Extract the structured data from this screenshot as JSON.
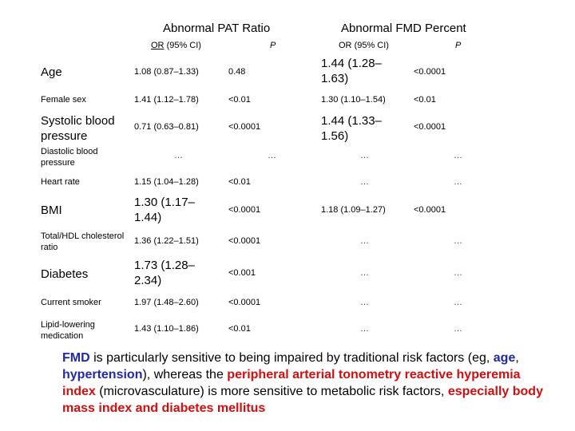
{
  "headers": {
    "pat": "Abnormal PAT Ratio",
    "fmd": "Abnormal FMD Percent",
    "or_label": "OR",
    "ci_label": "(95% CI)",
    "p_label": "P"
  },
  "rows": [
    {
      "label": "Age",
      "pat_or": "1.08 (0.87–1.33)",
      "pat_p": "0.48",
      "fmd_or": "1.44 (1.28–1.63)",
      "fmd_p": "<0.0001"
    },
    {
      "label": "Female sex",
      "pat_or": "1.41 (1.12–1.78)",
      "pat_p": "<0.01",
      "fmd_or": "1.30 (1.10–1.54)",
      "fmd_p": "<0.01"
    },
    {
      "label": "Systolic blood pressure",
      "pat_or": "0.71 (0.63–0.81)",
      "pat_p": "<0.0001",
      "fmd_or": "1.44 (1.33–1.56)",
      "fmd_p": "<0.0001"
    },
    {
      "label": "Diastolic blood pressure",
      "pat_or": "…",
      "pat_p": "…",
      "fmd_or": "…",
      "fmd_p": "…"
    },
    {
      "label": "Heart rate",
      "pat_or": "1.15 (1.04–1.28)",
      "pat_p": "<0.01",
      "fmd_or": "…",
      "fmd_p": "…"
    },
    {
      "label": "BMI",
      "pat_or": "1.30 (1.17–1.44)",
      "pat_p": "<0.0001",
      "fmd_or": "1.18 (1.09–1.27)",
      "fmd_p": "<0.0001"
    },
    {
      "label": "Total/HDL cholesterol ratio",
      "pat_or": "1.36 (1.22–1.51)",
      "pat_p": "<0.0001",
      "fmd_or": "…",
      "fmd_p": "…"
    },
    {
      "label": "Diabetes",
      "pat_or": "1.73 (1.28–2.34)",
      "pat_p": "<0.001",
      "fmd_or": "…",
      "fmd_p": "…"
    },
    {
      "label": "Current smoker",
      "pat_or": "1.97 (1.48–2.60)",
      "pat_p": "<0.0001",
      "fmd_or": "…",
      "fmd_p": "…"
    },
    {
      "label": "Lipid-lowering medication",
      "pat_or": "1.43 (1.10–1.86)",
      "pat_p": "<0.01",
      "fmd_or": "…",
      "fmd_p": "…"
    }
  ],
  "note": {
    "s1": "FMD",
    "s2": " is particularly sensitive to being impaired by traditional risk factors (eg, ",
    "s3": "age",
    "s4": ", ",
    "s5": "hypertension",
    "s6": "), whereas the ",
    "s7": "peripheral arterial tonometry reactive hyperemia index",
    "s8": " (microvasculature) is more sensitive to metabolic risk factors, ",
    "s9": "especially body mass index and diabetes mellitus"
  }
}
